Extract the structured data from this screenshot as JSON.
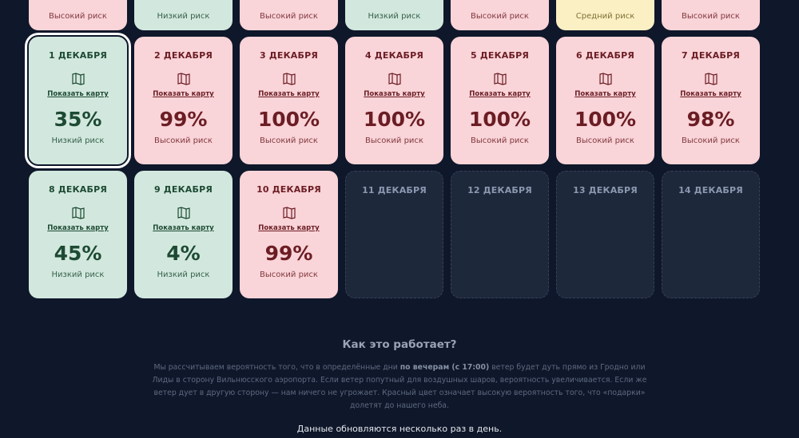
{
  "colors": {
    "background": "#0f172a",
    "high": "#f9d4d8",
    "low": "#d2e8de",
    "medium": "#fbf0c3",
    "empty": "#1e283b"
  },
  "map_link_label": "Показать карту",
  "map_icon": "map-icon",
  "top_row": [
    {
      "risk": "Высокий риск",
      "level": "high"
    },
    {
      "risk": "Низкий риск",
      "level": "low"
    },
    {
      "risk": "Высокий риск",
      "level": "high"
    },
    {
      "risk": "Низкий риск",
      "level": "low"
    },
    {
      "risk": "Высокий риск",
      "level": "high"
    },
    {
      "risk": "Средний риск",
      "level": "mid"
    },
    {
      "risk": "Высокий риск",
      "level": "high"
    }
  ],
  "days": [
    {
      "date": "1 ДЕКАБРЯ",
      "percent": "35%",
      "risk": "Низкий риск",
      "level": "low",
      "selected": true
    },
    {
      "date": "2 ДЕКАБРЯ",
      "percent": "99%",
      "risk": "Высокий риск",
      "level": "high"
    },
    {
      "date": "3 ДЕКАБРЯ",
      "percent": "100%",
      "risk": "Высокий риск",
      "level": "high"
    },
    {
      "date": "4 ДЕКАБРЯ",
      "percent": "100%",
      "risk": "Высокий риск",
      "level": "high"
    },
    {
      "date": "5 ДЕКАБРЯ",
      "percent": "100%",
      "risk": "Высокий риск",
      "level": "high"
    },
    {
      "date": "6 ДЕКАБРЯ",
      "percent": "100%",
      "risk": "Высокий риск",
      "level": "high"
    },
    {
      "date": "7 ДЕКАБРЯ",
      "percent": "98%",
      "risk": "Высокий риск",
      "level": "high"
    },
    {
      "date": "8 ДЕКАБРЯ",
      "percent": "45%",
      "risk": "Низкий риск",
      "level": "low"
    },
    {
      "date": "9 ДЕКАБРЯ",
      "percent": "4%",
      "risk": "Низкий риск",
      "level": "low"
    },
    {
      "date": "10 ДЕКАБРЯ",
      "percent": "99%",
      "risk": "Высокий риск",
      "level": "high"
    },
    {
      "date": "11 ДЕКАБРЯ",
      "level": "empty"
    },
    {
      "date": "12 ДЕКАБРЯ",
      "level": "empty"
    },
    {
      "date": "13 ДЕКАБРЯ",
      "level": "empty"
    },
    {
      "date": "14 ДЕКАБРЯ",
      "level": "empty"
    }
  ],
  "info": {
    "title": "Как это работает?",
    "desc_before": "Мы рассчитываем вероятность того, что в определённые дни ",
    "desc_bold": "по вечерам (с 17:00)",
    "desc_after": " ветер будет дуть прямо из Гродно или Лиды в сторону Вильнюсского аэропорта. Если ветер попутный для воздушных шаров, вероятность увеличивается. Если же ветер дует в другую сторону — нам ничего не угрожает. Красный цвет означает высокую вероятность того, что «подарки» долетят до нашего неба.",
    "update_note": "Данные обновляются несколько раз в день."
  }
}
